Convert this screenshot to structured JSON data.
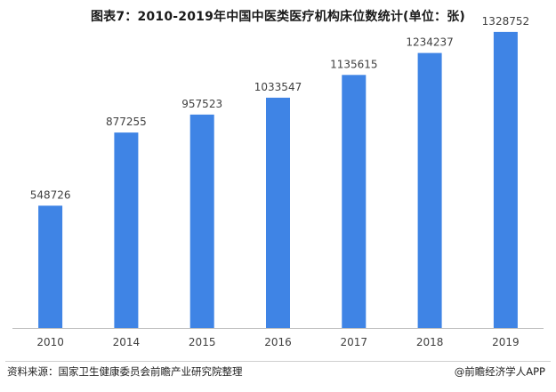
{
  "title": "图表7：2010-2019年中国中医类医疗机构床位数统计(单位：张)",
  "source_left": "资料来源：国家卫生健康委员会前瞻产业研究院整理",
  "source_right": "@前瞻经济学人APP",
  "colors": {
    "bar": "#3f84e5",
    "axis": "#bfbfbf",
    "text": "#404040"
  },
  "chart_data": {
    "type": "bar",
    "categories": [
      "2010",
      "2014",
      "2015",
      "2016",
      "2017",
      "2018",
      "2019"
    ],
    "values": [
      548726,
      877255,
      957523,
      1033547,
      1135615,
      1234237,
      1328752
    ],
    "title": "图表7：2010-2019年中国中医类医疗机构床位数统计(单位：张)",
    "xlabel": "",
    "ylabel": "",
    "ylim": [
      0,
      1400000
    ],
    "grid": false,
    "data_labels": true
  }
}
